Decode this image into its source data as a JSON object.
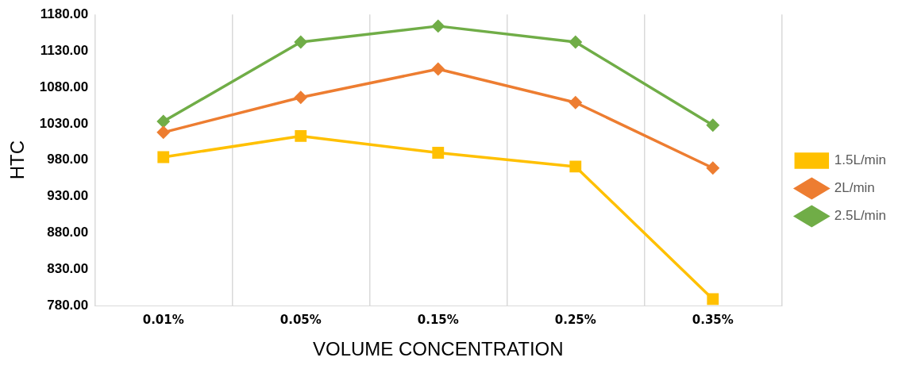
{
  "chart_data": {
    "type": "line",
    "xlabel": "VOLUME CONCENTRATION",
    "ylabel": "HTC",
    "categories": [
      "0.01%",
      "0.05%",
      "0.15%",
      "0.25%",
      "0.35%"
    ],
    "series": [
      {
        "name": "1.5L/min",
        "color": "#ffc000",
        "marker": "square",
        "values": [
          984,
          1013,
          990,
          971,
          789
        ]
      },
      {
        "name": "2L/min",
        "color": "#ed7d31",
        "marker": "diamond",
        "values": [
          1018,
          1066,
          1105,
          1059,
          969
        ]
      },
      {
        "name": "2.5L/min",
        "color": "#70ad47",
        "marker": "diamond",
        "values": [
          1033,
          1142,
          1164,
          1142,
          1028
        ]
      }
    ],
    "ylim": [
      780,
      1180
    ],
    "yticks": [
      {
        "value": 780,
        "label": "780.00"
      },
      {
        "value": 830,
        "label": "830.00"
      },
      {
        "value": 880,
        "label": "880.00"
      },
      {
        "value": 930,
        "label": "930.00"
      },
      {
        "value": 980,
        "label": "980.00"
      },
      {
        "value": 1030,
        "label": "1030.00"
      },
      {
        "value": 1080,
        "label": "1080.00"
      },
      {
        "value": 1130,
        "label": "1130.00"
      },
      {
        "value": 1180,
        "label": "1180.00"
      }
    ],
    "grid": "x",
    "legend": "right",
    "line_style": "solid"
  }
}
